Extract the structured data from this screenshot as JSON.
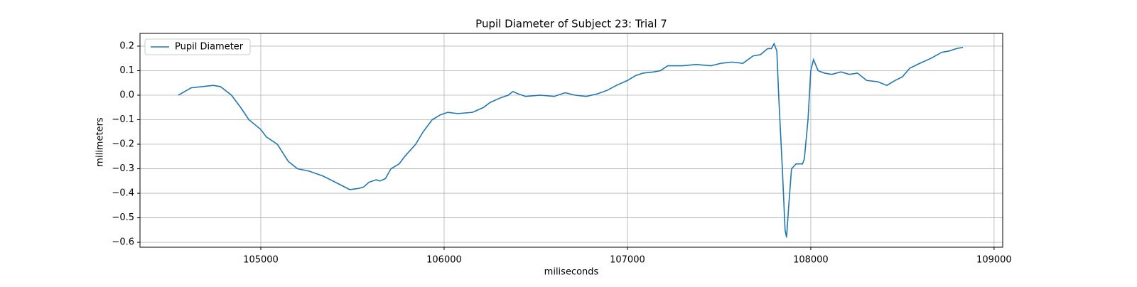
{
  "chart_data": {
    "type": "line",
    "title": "Pupil Diameter of Subject 23: Trial 7",
    "xlabel": "miliseconds",
    "ylabel": "milimeters",
    "x": [
      104550,
      104620,
      104680,
      104740,
      104780,
      104840,
      104890,
      104935,
      105000,
      105030,
      105090,
      105150,
      105200,
      105265,
      105340,
      105420,
      105485,
      105535,
      105560,
      105590,
      105630,
      105650,
      105680,
      105710,
      105755,
      105785,
      105845,
      105885,
      105935,
      105980,
      106020,
      106075,
      106155,
      106215,
      106250,
      106310,
      106350,
      106375,
      106405,
      106445,
      106525,
      106600,
      106660,
      106715,
      106775,
      106835,
      106890,
      106940,
      107000,
      107045,
      107085,
      107145,
      107180,
      107220,
      107300,
      107375,
      107455,
      107510,
      107570,
      107630,
      107685,
      107725,
      107765,
      107785,
      107800,
      107815,
      107825,
      107845,
      107860,
      107868,
      107880,
      107895,
      107920,
      107955,
      107965,
      107985,
      108000,
      108015,
      108040,
      108075,
      108115,
      108165,
      108210,
      108255,
      108305,
      108365,
      108415,
      108460,
      108500,
      108540,
      108595,
      108655,
      108715,
      108755,
      108795,
      108830
    ],
    "series": [
      {
        "name": "Pupil Diameter",
        "color": "#1f77b4",
        "values": [
          0.0,
          0.03,
          0.035,
          0.04,
          0.035,
          0.0,
          -0.05,
          -0.1,
          -0.14,
          -0.17,
          -0.2,
          -0.27,
          -0.3,
          -0.31,
          -0.33,
          -0.36,
          -0.385,
          -0.38,
          -0.375,
          -0.355,
          -0.345,
          -0.35,
          -0.34,
          -0.3,
          -0.28,
          -0.25,
          -0.2,
          -0.15,
          -0.1,
          -0.08,
          -0.07,
          -0.075,
          -0.07,
          -0.05,
          -0.03,
          -0.01,
          0.0,
          0.015,
          0.005,
          -0.005,
          0.0,
          -0.005,
          0.01,
          0.0,
          -0.005,
          0.005,
          0.02,
          0.04,
          0.06,
          0.08,
          0.09,
          0.095,
          0.1,
          0.12,
          0.12,
          0.125,
          0.12,
          0.13,
          0.135,
          0.13,
          0.16,
          0.165,
          0.19,
          0.19,
          0.21,
          0.18,
          0.0,
          -0.3,
          -0.55,
          -0.58,
          -0.45,
          -0.3,
          -0.28,
          -0.28,
          -0.26,
          -0.1,
          0.1,
          0.145,
          0.1,
          0.09,
          0.085,
          0.095,
          0.085,
          0.09,
          0.06,
          0.055,
          0.04,
          0.06,
          0.075,
          0.11,
          0.13,
          0.15,
          0.175,
          0.18,
          0.19,
          0.195
        ]
      }
    ],
    "xlim": [
      104341,
      109047
    ],
    "ylim": [
      -0.62,
      0.252
    ],
    "xticks": [
      105000,
      106000,
      107000,
      108000,
      109000
    ],
    "yticks": [
      {
        "value": -0.6,
        "label": "−0.6"
      },
      {
        "value": -0.5,
        "label": "−0.5"
      },
      {
        "value": -0.4,
        "label": "−0.4"
      },
      {
        "value": -0.3,
        "label": "−0.3"
      },
      {
        "value": -0.2,
        "label": "−0.2"
      },
      {
        "value": -0.1,
        "label": "−0.1"
      },
      {
        "value": 0,
        "label": "0.0"
      },
      0.1,
      0.2
    ],
    "grid": true,
    "legend": "upper left"
  }
}
